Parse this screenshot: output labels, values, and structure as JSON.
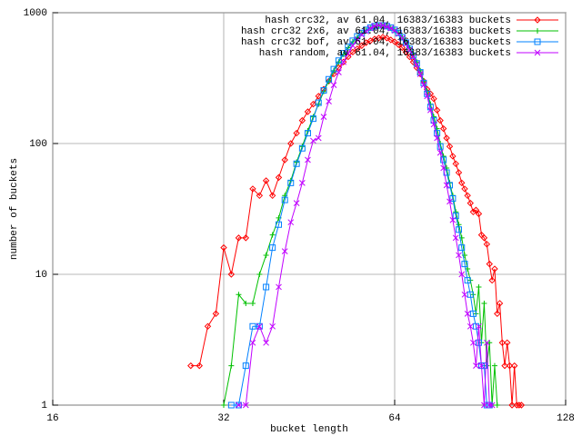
{
  "chart_data": {
    "type": "line",
    "x_label": "bucket length",
    "y_label": "number of buckets",
    "xscale": "log",
    "yscale": "log",
    "grid": true,
    "legend": "top right",
    "xlim": [
      16,
      128
    ],
    "xticks": [
      16,
      32,
      64,
      128
    ],
    "ylim": [
      1,
      1000
    ],
    "yticks": [
      1,
      10,
      100,
      1000
    ],
    "x": [
      28,
      29,
      30,
      31,
      32,
      33,
      34,
      35,
      36,
      37,
      38,
      39,
      40,
      41,
      42,
      43,
      44,
      45,
      46,
      47,
      48,
      49,
      50,
      51,
      52,
      53,
      54,
      55,
      56,
      57,
      58,
      59,
      60,
      61,
      62,
      63,
      64,
      65,
      66,
      67,
      68,
      69,
      70,
      71,
      72,
      73,
      74,
      75,
      76,
      77,
      78,
      79,
      80,
      81,
      82,
      83,
      84,
      85,
      86,
      87,
      88,
      89,
      90,
      91,
      92,
      93,
      94,
      95,
      96,
      97,
      98,
      99,
      100,
      101,
      102,
      103,
      104,
      105,
      106,
      107
    ],
    "series": [
      {
        "name": "hash crc32, av 61.04, 16383/16383 buckets",
        "color": "#ff0000",
        "marker": "diamond",
        "values": [
          2,
          2,
          4,
          5,
          16,
          10,
          19,
          19,
          45,
          40,
          52,
          40,
          55,
          75,
          100,
          120,
          150,
          175,
          200,
          230,
          260,
          300,
          340,
          380,
          420,
          460,
          500,
          530,
          560,
          590,
          610,
          630,
          640,
          650,
          640,
          620,
          600,
          570,
          540,
          500,
          460,
          420,
          380,
          340,
          300,
          260,
          240,
          220,
          180,
          150,
          130,
          110,
          95,
          80,
          70,
          60,
          50,
          45,
          40,
          35,
          30,
          31,
          29,
          20,
          19,
          17,
          12,
          9,
          11,
          5,
          6,
          3,
          2,
          3,
          2,
          1,
          2,
          1,
          1,
          1
        ]
      },
      {
        "name": "hash crc32 2x6, av 61.04, 16383/16383 buckets",
        "color": "#00c000",
        "marker": "plus",
        "values": [
          null,
          null,
          null,
          null,
          1,
          2,
          7,
          6,
          6,
          10,
          14,
          20,
          27,
          40,
          52,
          72,
          95,
          125,
          160,
          200,
          250,
          300,
          360,
          420,
          480,
          540,
          600,
          650,
          700,
          730,
          760,
          780,
          790,
          790,
          780,
          760,
          740,
          700,
          650,
          600,
          540,
          480,
          420,
          360,
          300,
          250,
          200,
          160,
          130,
          100,
          80,
          65,
          50,
          40,
          30,
          24,
          19,
          14,
          11,
          9,
          7,
          5,
          8,
          3,
          6,
          2,
          3,
          1,
          2,
          1,
          null,
          null,
          null,
          null,
          null,
          null,
          null,
          null,
          null,
          null
        ]
      },
      {
        "name": "hash crc32 bof, av 61.04, 16383/16383 buckets",
        "color": "#0080ff",
        "marker": "square",
        "values": [
          null,
          null,
          null,
          null,
          null,
          1,
          1,
          2,
          4,
          4,
          8,
          16,
          24,
          37,
          50,
          70,
          92,
          120,
          155,
          205,
          255,
          310,
          370,
          430,
          490,
          550,
          610,
          660,
          700,
          740,
          770,
          790,
          800,
          800,
          790,
          770,
          740,
          700,
          650,
          590,
          530,
          470,
          410,
          350,
          290,
          240,
          190,
          150,
          120,
          95,
          75,
          60,
          48,
          38,
          28,
          22,
          16,
          12,
          9,
          7,
          5,
          4,
          3,
          2,
          2,
          1,
          1,
          null,
          null,
          null,
          null,
          null,
          null,
          null,
          null,
          null,
          null,
          null,
          null,
          null
        ]
      },
      {
        "name": "hash random, av 61.04, 16383/16383 buckets",
        "color": "#c000ff",
        "marker": "cross",
        "values": [
          null,
          null,
          null,
          null,
          null,
          null,
          1,
          1,
          3,
          4,
          3,
          4,
          8,
          15,
          25,
          35,
          50,
          75,
          105,
          110,
          160,
          210,
          280,
          350,
          420,
          490,
          560,
          620,
          680,
          720,
          760,
          790,
          800,
          800,
          780,
          760,
          730,
          690,
          640,
          580,
          520,
          460,
          400,
          340,
          280,
          230,
          180,
          140,
          110,
          85,
          65,
          48,
          36,
          26,
          19,
          14,
          10,
          7,
          5,
          4,
          3,
          2,
          4,
          2,
          1,
          3,
          1,
          1,
          null,
          null,
          null,
          null,
          null,
          null,
          null,
          null,
          null,
          null,
          null,
          null
        ]
      }
    ]
  }
}
